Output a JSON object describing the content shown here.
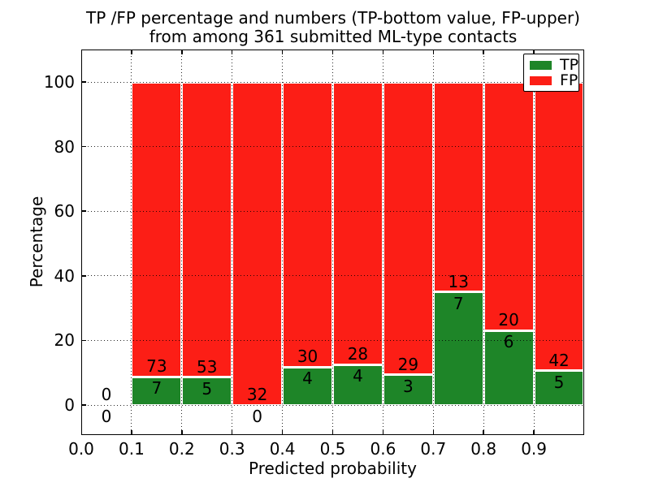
{
  "chart_data": {
    "type": "bar",
    "stacked": true,
    "title_lines": [
      "TP /FP percentage and numbers (TP-bottom value, FP-upper)",
      "from among 361 submitted ML-type contacts"
    ],
    "xlabel": "Predicted probability",
    "ylabel": "Percentage",
    "xlim": [
      0.0,
      1.0
    ],
    "ylim": [
      -10,
      110
    ],
    "x_tick_values": [
      0.0,
      0.1,
      0.2,
      0.3,
      0.4,
      0.5,
      0.6,
      0.7,
      0.8,
      0.9
    ],
    "x_tick_labels": [
      "0.0",
      "0.1",
      "0.2",
      "0.3",
      "0.4",
      "0.5",
      "0.6",
      "0.7",
      "0.8",
      "0.9"
    ],
    "y_tick_values": [
      0,
      20,
      40,
      60,
      80,
      100
    ],
    "y_tick_labels": [
      "0",
      "20",
      "40",
      "60",
      "80",
      "100"
    ],
    "grid": "dotted-black-above-bars",
    "total_contacts": 361,
    "colors": {
      "tp": "#1e8528",
      "fp": "#fc1e16"
    },
    "legend": {
      "position": "upper-right",
      "entries": [
        {
          "label": "TP",
          "color": "#1e8528"
        },
        {
          "label": "FP",
          "color": "#fc1e16"
        }
      ]
    },
    "bins": [
      {
        "x_start": 0.0,
        "x_end": 0.1,
        "tp_count": 0,
        "fp_count": 0
      },
      {
        "x_start": 0.1,
        "x_end": 0.2,
        "tp_count": 7,
        "fp_count": 73
      },
      {
        "x_start": 0.2,
        "x_end": 0.3,
        "tp_count": 5,
        "fp_count": 53
      },
      {
        "x_start": 0.3,
        "x_end": 0.4,
        "tp_count": 0,
        "fp_count": 32
      },
      {
        "x_start": 0.4,
        "x_end": 0.5,
        "tp_count": 4,
        "fp_count": 30
      },
      {
        "x_start": 0.5,
        "x_end": 0.6,
        "tp_count": 4,
        "fp_count": 28
      },
      {
        "x_start": 0.6,
        "x_end": 0.7,
        "tp_count": 3,
        "fp_count": 29
      },
      {
        "x_start": 0.7,
        "x_end": 0.8,
        "tp_count": 7,
        "fp_count": 13
      },
      {
        "x_start": 0.8,
        "x_end": 0.9,
        "tp_count": 6,
        "fp_count": 20
      },
      {
        "x_start": 0.9,
        "x_end": 1.0,
        "tp_count": 5,
        "fp_count": 42
      }
    ]
  }
}
